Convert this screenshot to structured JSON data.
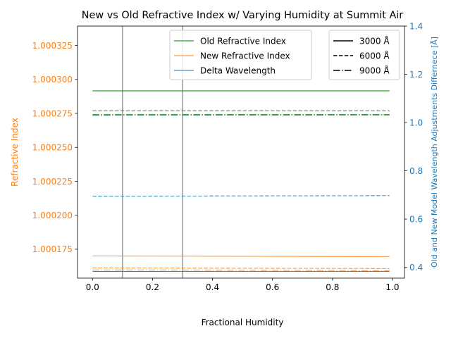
{
  "chart_data": {
    "type": "line",
    "title": "New vs Old Refractive Index w/ Varying Humidity at Summit Air",
    "xlabel": "Fractional Humidity",
    "ylabel_left": "Refractive Index",
    "ylabel_right": "Old and New Model Wavelength Adjustments Differnece [Å]",
    "xlim": [
      -0.05,
      1.04
    ],
    "ylim_left": [
      1.0001537,
      1.0003393
    ],
    "ylim_right": [
      0.355,
      1.4
    ],
    "x_ticks": [
      {
        "value": 0.0,
        "label": "0.0"
      },
      {
        "value": 0.2,
        "label": "0.2"
      },
      {
        "value": 0.4,
        "label": "0.4"
      },
      {
        "value": 0.6,
        "label": "0.6"
      },
      {
        "value": 0.8,
        "label": "0.8"
      },
      {
        "value": 1.0,
        "label": "1.0"
      }
    ],
    "y_left_ticks": [
      {
        "value": 1.000175,
        "label": "1.000175"
      },
      {
        "value": 1.0002,
        "label": "1.000200"
      },
      {
        "value": 1.000225,
        "label": "1.000225"
      },
      {
        "value": 1.00025,
        "label": "1.000250"
      },
      {
        "value": 1.000275,
        "label": "1.000275"
      },
      {
        "value": 1.0003,
        "label": "1.000300"
      },
      {
        "value": 1.000325,
        "label": "1.000325"
      }
    ],
    "y_right_ticks": [
      {
        "value": 0.4,
        "label": "0.4"
      },
      {
        "value": 0.6,
        "label": "0.6"
      },
      {
        "value": 0.8,
        "label": "0.8"
      },
      {
        "value": 1.0,
        "label": "1.0"
      },
      {
        "value": 1.2,
        "label": "1.2"
      },
      {
        "value": 1.4,
        "label": "1.4"
      }
    ],
    "vertical_lines": [
      0.1,
      0.3
    ],
    "series": [
      {
        "name": "Old Refractive Index",
        "quantity": "old",
        "axis": "left",
        "color": "#008000",
        "wavelength": "3000 Å",
        "dash": "solid",
        "values": [
          1.0002916,
          1.0002916
        ]
      },
      {
        "name": "",
        "quantity": "old",
        "axis": "left",
        "color": "#008000",
        "wavelength": "6000 Å",
        "dash": "dashed",
        "values": [
          1.0002768,
          1.0002768
        ]
      },
      {
        "name": "",
        "quantity": "old",
        "axis": "left",
        "color": "#008000",
        "wavelength": "9000 Å",
        "dash": "dashdot",
        "values": [
          1.0002741,
          1.0002741
        ]
      },
      {
        "name": "New Refractive Index",
        "quantity": "new",
        "axis": "left",
        "color": "#ff7f0e",
        "wavelength": "3000 Å",
        "dash": "solid",
        "values": [
          1.00017,
          1.0001696
        ]
      },
      {
        "name": "",
        "quantity": "new",
        "axis": "left",
        "color": "#ff7f0e",
        "wavelength": "6000 Å",
        "dash": "dashed",
        "values": [
          1.0001612,
          1.0001608
        ]
      },
      {
        "name": "",
        "quantity": "new",
        "axis": "left",
        "color": "#ff7f0e",
        "wavelength": "9000 Å",
        "dash": "dashdot",
        "values": [
          1.0001597,
          1.0001593
        ]
      },
      {
        "name": "Delta Wavelength",
        "quantity": "delta",
        "axis": "right",
        "color": "#1f77b4",
        "wavelength": "3000 Å",
        "dash": "solid",
        "values": [
          0.3825,
          0.3825
        ]
      },
      {
        "name": "",
        "quantity": "delta",
        "axis": "right",
        "color": "#1f77b4",
        "wavelength": "6000 Å",
        "dash": "dashed",
        "values": [
          0.695,
          0.697
        ]
      },
      {
        "name": "",
        "quantity": "delta",
        "axis": "right",
        "color": "#1f77b4",
        "wavelength": "9000 Å",
        "dash": "dashdot",
        "values": [
          1.03,
          1.031
        ]
      }
    ],
    "x": [
      0.0,
      0.99
    ],
    "legend_quantity": {
      "placement": "top-center",
      "entries": [
        {
          "label": "Old Refractive Index",
          "color": "#008000"
        },
        {
          "label": "New Refractive Index",
          "color": "#ff7f0e"
        },
        {
          "label": "Delta Wavelength",
          "color": "#1f77b4"
        }
      ]
    },
    "legend_wavelength": {
      "placement": "top-right",
      "entries": [
        {
          "label": "3000 Å",
          "dash": "solid",
          "color": "#000000"
        },
        {
          "label": "6000 Å",
          "dash": "dashed",
          "color": "#000000"
        },
        {
          "label": "9000 Å",
          "dash": "dashdot",
          "color": "#000000"
        }
      ]
    },
    "colors": {
      "left_axis": "#ff7f0e",
      "right_axis": "#1f77b4",
      "vertical_line": "#808080"
    }
  }
}
